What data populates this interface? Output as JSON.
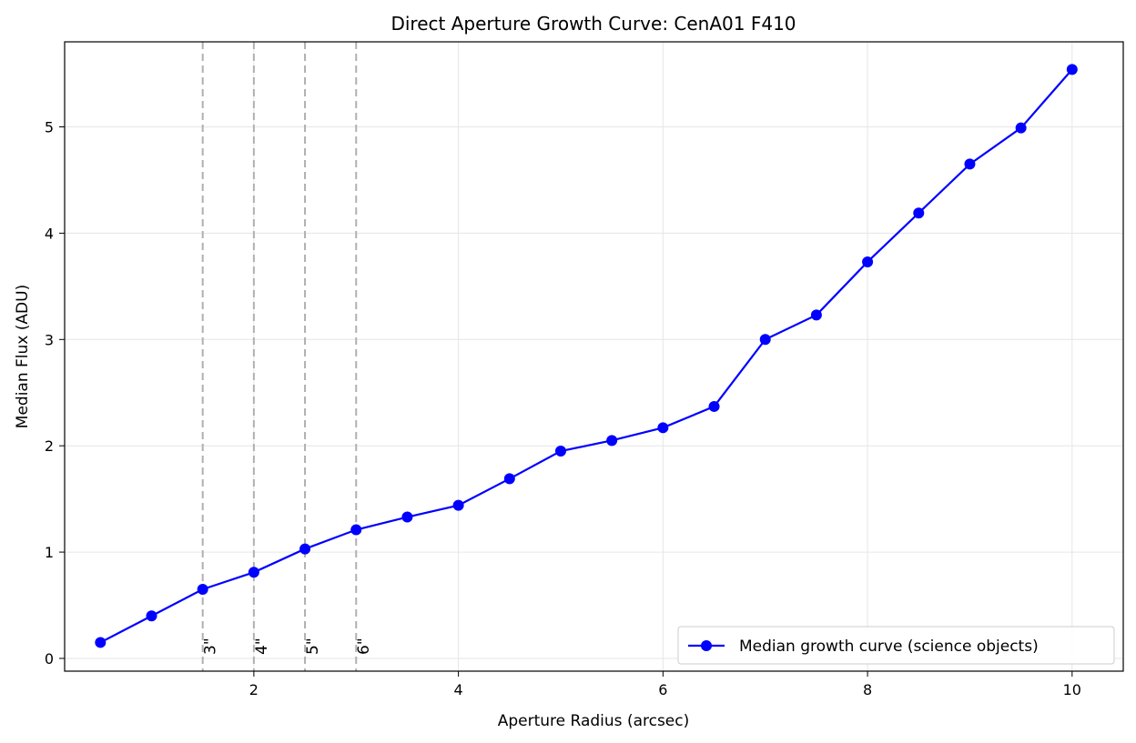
{
  "chart_data": {
    "type": "line",
    "title": "Direct Aperture Growth Curve: CenA01 F410",
    "xlabel": "Aperture Radius (arcsec)",
    "ylabel": "Median Flux (ADU)",
    "xlim": [
      0.15,
      10.5
    ],
    "ylim": [
      -0.12,
      5.8
    ],
    "xticks": [
      2,
      4,
      6,
      8,
      10
    ],
    "yticks": [
      0,
      1,
      2,
      3,
      4,
      5
    ],
    "grid": true,
    "legend_position": "lower-right",
    "series": [
      {
        "name": "Median growth curve (science objects)",
        "color": "#0000ff",
        "marker": "circle",
        "x": [
          0.5,
          1.0,
          1.5,
          2.0,
          2.5,
          3.0,
          3.5,
          4.0,
          4.5,
          5.0,
          5.5,
          6.0,
          6.5,
          7.0,
          7.5,
          8.0,
          8.5,
          9.0,
          9.5,
          10.0
        ],
        "y": [
          0.15,
          0.4,
          0.65,
          0.81,
          1.03,
          1.21,
          1.33,
          1.44,
          1.69,
          1.95,
          2.05,
          2.17,
          2.37,
          3.0,
          3.23,
          3.73,
          4.19,
          4.65,
          4.99,
          5.54
        ]
      }
    ],
    "reference_lines": [
      {
        "x": 1.5,
        "label": "3\""
      },
      {
        "x": 2.0,
        "label": "4\""
      },
      {
        "x": 2.5,
        "label": "5\""
      },
      {
        "x": 3.0,
        "label": "6\""
      }
    ],
    "reference_line_color": "#b0b0b0"
  }
}
